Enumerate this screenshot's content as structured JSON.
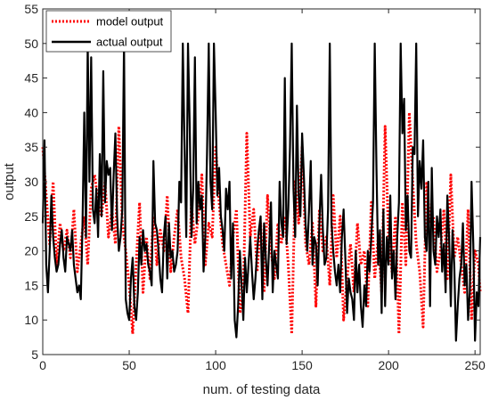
{
  "chart_data": {
    "type": "line",
    "title": "",
    "xlabel": "num. of testing data",
    "ylabel": "output",
    "xlim": [
      0,
      253
    ],
    "ylim": [
      5,
      55
    ],
    "xticks": [
      "0",
      "50",
      "100",
      "150",
      "200",
      "250"
    ],
    "yticks": [
      "5",
      "10",
      "15",
      "20",
      "25",
      "30",
      "35",
      "40",
      "45",
      "50",
      "55"
    ],
    "grid": false,
    "legend_position": "top-left",
    "series": [
      {
        "name": "model output",
        "color": "#ff0000",
        "style": "dotted",
        "x": [
          0,
          2,
          4,
          6,
          8,
          10,
          12,
          14,
          16,
          18,
          20,
          22,
          24,
          26,
          28,
          30,
          32,
          34,
          36,
          38,
          40,
          42,
          44,
          46,
          48,
          50,
          52,
          54,
          56,
          58,
          60,
          62,
          64,
          66,
          68,
          70,
          72,
          74,
          76,
          78,
          80,
          82,
          84,
          86,
          88,
          90,
          92,
          94,
          96,
          98,
          100,
          102,
          104,
          106,
          108,
          110,
          112,
          114,
          116,
          118,
          120,
          122,
          124,
          126,
          128,
          130,
          132,
          134,
          136,
          138,
          140,
          142,
          144,
          146,
          148,
          150,
          152,
          154,
          156,
          158,
          160,
          162,
          164,
          166,
          168,
          170,
          172,
          174,
          176,
          178,
          180,
          182,
          184,
          186,
          188,
          190,
          192,
          194,
          196,
          198,
          200,
          202,
          204,
          206,
          208,
          210,
          212,
          214,
          216,
          218,
          220,
          222,
          224,
          226,
          228,
          230,
          232,
          234,
          236,
          238,
          240,
          242,
          244,
          246,
          248,
          250,
          252,
          253
        ],
        "values": [
          35,
          28,
          21,
          30,
          18,
          24,
          20,
          23,
          19,
          26,
          17,
          21,
          25,
          18,
          29,
          31,
          27,
          25,
          30,
          22,
          26,
          21,
          38,
          24,
          20,
          15,
          8,
          18,
          27,
          14,
          22,
          16,
          25,
          18,
          23,
          20,
          28,
          17,
          22,
          26,
          19,
          16,
          11,
          27,
          21,
          25,
          31,
          18,
          24,
          22,
          35,
          27,
          21,
          18,
          15,
          22,
          26,
          11,
          14,
          37,
          22,
          26,
          17,
          24,
          14,
          28,
          20,
          16,
          24,
          21,
          25,
          18,
          8,
          30,
          24,
          35,
          21,
          18,
          24,
          12,
          26,
          20,
          22,
          15,
          28,
          19,
          25,
          10,
          16,
          21,
          14,
          24,
          18,
          20,
          12,
          27,
          16,
          22,
          14,
          38,
          22,
          17,
          25,
          8,
          27,
          18,
          40,
          30,
          21,
          17,
          9,
          30,
          24,
          25,
          17,
          20,
          26,
          16,
          31,
          19,
          22,
          18,
          14,
          26,
          10,
          20,
          18,
          14
        ]
      },
      {
        "name": "actual output",
        "color": "#000000",
        "style": "solid",
        "x": [
          0,
          1,
          2,
          3,
          4,
          5,
          6,
          7,
          8,
          9,
          10,
          11,
          12,
          13,
          14,
          15,
          16,
          17,
          18,
          19,
          20,
          21,
          22,
          23,
          24,
          25,
          26,
          27,
          28,
          29,
          30,
          31,
          32,
          33,
          34,
          35,
          36,
          37,
          38,
          39,
          40,
          41,
          42,
          43,
          44,
          45,
          46,
          47,
          48,
          49,
          50,
          51,
          52,
          53,
          54,
          55,
          56,
          57,
          58,
          59,
          60,
          61,
          62,
          63,
          64,
          65,
          66,
          67,
          68,
          69,
          70,
          71,
          72,
          73,
          74,
          75,
          76,
          77,
          78,
          79,
          80,
          81,
          82,
          83,
          84,
          85,
          86,
          87,
          88,
          89,
          90,
          91,
          92,
          93,
          94,
          95,
          96,
          97,
          98,
          99,
          100,
          101,
          102,
          103,
          104,
          105,
          106,
          107,
          108,
          109,
          110,
          111,
          112,
          113,
          114,
          115,
          116,
          117,
          118,
          119,
          120,
          121,
          122,
          123,
          124,
          125,
          126,
          127,
          128,
          129,
          130,
          131,
          132,
          133,
          134,
          135,
          136,
          137,
          138,
          139,
          140,
          141,
          142,
          143,
          144,
          145,
          146,
          147,
          148,
          149,
          150,
          151,
          152,
          153,
          154,
          155,
          156,
          157,
          158,
          159,
          160,
          161,
          162,
          163,
          164,
          165,
          166,
          167,
          168,
          169,
          170,
          171,
          172,
          173,
          174,
          175,
          176,
          177,
          178,
          179,
          180,
          181,
          182,
          183,
          184,
          185,
          186,
          187,
          188,
          189,
          190,
          191,
          192,
          193,
          194,
          195,
          196,
          197,
          198,
          199,
          200,
          201,
          202,
          203,
          204,
          205,
          206,
          207,
          208,
          209,
          210,
          211,
          212,
          213,
          214,
          215,
          216,
          217,
          218,
          219,
          220,
          221,
          222,
          223,
          224,
          225,
          226,
          227,
          228,
          229,
          230,
          231,
          232,
          233,
          234,
          235,
          236,
          237,
          238,
          239,
          240,
          241,
          242,
          243,
          244,
          245,
          246,
          247,
          248,
          249,
          250,
          251,
          252,
          253
        ],
        "values": [
          24,
          36,
          18,
          14,
          20,
          28,
          22,
          19,
          17,
          18,
          21,
          23,
          19,
          17,
          22,
          21,
          20,
          23,
          18,
          16,
          14,
          15,
          13,
          24,
          40,
          22,
          50,
          30,
          48,
          26,
          24,
          29,
          22,
          34,
          25,
          46,
          27,
          33,
          31,
          32,
          23,
          31,
          37,
          25,
          20,
          22,
          26,
          50,
          13,
          11,
          10,
          16,
          19,
          12,
          10,
          14,
          22,
          18,
          23,
          20,
          21,
          18,
          17,
          15,
          33,
          24,
          23,
          20,
          16,
          14,
          22,
          25,
          16,
          24,
          19,
          20,
          17,
          18,
          20,
          30,
          27,
          50,
          35,
          22,
          50,
          38,
          22,
          29,
          48,
          24,
          30,
          26,
          28,
          17,
          22,
          34,
          50,
          30,
          26,
          50,
          40,
          28,
          32,
          25,
          23,
          20,
          29,
          26,
          30,
          16,
          24,
          10,
          7.5,
          12,
          20,
          15,
          10,
          19,
          14,
          18,
          22,
          17,
          13,
          16,
          20,
          23,
          25,
          13,
          24,
          19,
          15,
          21,
          27,
          14,
          20,
          18,
          16,
          30,
          24,
          22,
          45,
          21,
          26,
          35,
          50,
          29,
          22,
          41,
          28,
          25,
          37,
          31,
          24,
          20,
          26,
          33,
          18,
          22,
          21,
          15,
          24,
          31,
          23,
          18,
          19,
          26,
          50,
          24,
          20,
          17,
          15,
          18,
          14,
          22,
          26,
          19,
          11,
          16,
          14,
          13,
          10,
          20,
          14,
          18,
          12,
          9,
          15,
          12,
          20,
          17,
          22,
          27,
          50,
          32,
          18,
          23,
          11,
          26,
          12,
          22,
          18,
          28,
          16,
          20,
          13,
          22,
          27,
          50,
          37,
          42,
          23,
          28,
          20,
          19,
          35,
          34,
          50,
          25,
          33,
          29,
          36,
          22,
          20,
          30,
          12,
          32,
          20,
          18,
          25,
          22,
          26,
          17,
          21,
          14,
          28,
          22,
          12,
          23,
          18,
          7,
          12,
          16,
          18,
          24,
          15,
          18,
          10,
          14,
          30,
          21,
          7,
          14,
          12,
          22
        ]
      }
    ]
  }
}
